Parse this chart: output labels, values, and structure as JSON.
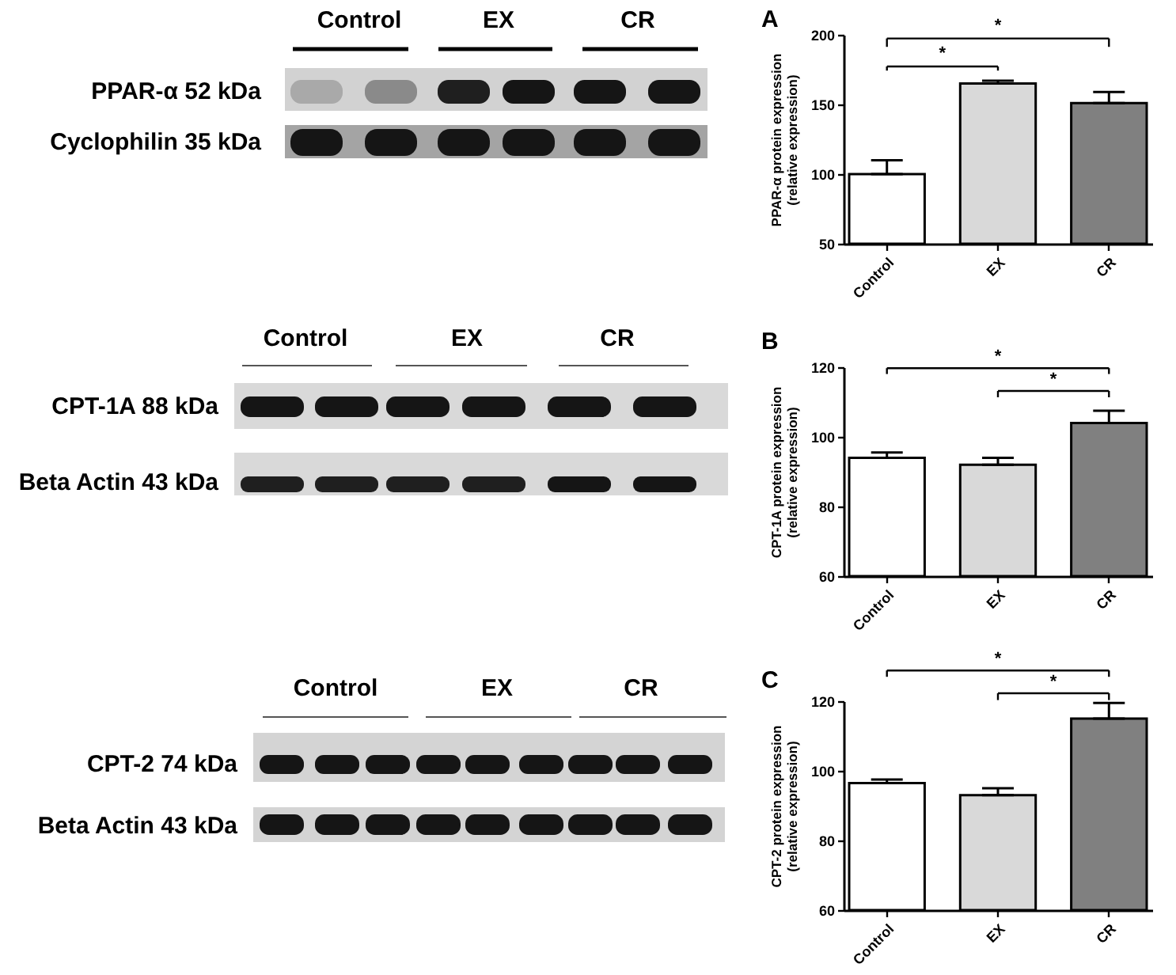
{
  "chart_data": [
    {
      "type": "other",
      "categories": [
        "Control",
        "EX",
        "CR"
      ],
      "annotations": [
        "PPAR-α 52 kDa",
        "Cyclophilin 35 kDa"
      ]
    },
    {
      "type": "bar",
      "title": "A",
      "categories": [
        "Control",
        "EX",
        "CR"
      ],
      "values": [
        100,
        165,
        151
      ],
      "colors": [
        "#ffffff",
        "#d9d9d9",
        "#808080"
      ],
      "errors": [
        [
          100,
          110
        ],
        [
          165,
          167
        ],
        [
          151,
          159
        ]
      ],
      "ylabel": "PPAR-α protein expression\n(relative expression)",
      "ylim": [
        50,
        200
      ],
      "yticks": [
        50,
        100,
        150,
        200
      ],
      "annotations": [
        "*",
        "*"
      ]
    },
    {
      "type": "other",
      "categories": [
        "Control",
        "EX",
        "CR"
      ],
      "annotations": [
        "CPT-1A 88 kDa",
        "Beta Actin 43 kDa"
      ]
    },
    {
      "type": "bar",
      "title": "B",
      "categories": [
        "Control",
        "EX",
        "CR"
      ],
      "values": [
        94,
        92,
        104
      ],
      "colors": [
        "#ffffff",
        "#d9d9d9",
        "#808080"
      ],
      "errors": [
        [
          94,
          95.5
        ],
        [
          92,
          94
        ],
        [
          104,
          107.5
        ]
      ],
      "ylabel": "CPT-1A protein expression\n(relative expression)",
      "ylim": [
        60,
        120
      ],
      "yticks": [
        60,
        80,
        100,
        120
      ],
      "annotations": [
        "*",
        "*"
      ]
    },
    {
      "type": "other",
      "categories": [
        "Control",
        "EX",
        "CR"
      ],
      "annotations": [
        "CPT-2 74 kDa",
        "Beta Actin 43 kDa"
      ]
    },
    {
      "type": "bar",
      "title": "C",
      "categories": [
        "Control",
        "EX",
        "CR"
      ],
      "values": [
        96.5,
        93,
        115
      ],
      "colors": [
        "#ffffff",
        "#d9d9d9",
        "#808080"
      ],
      "errors": [
        [
          96.5,
          97.5
        ],
        [
          93,
          95
        ],
        [
          115,
          119.5
        ]
      ],
      "ylabel": "CPT-2 protein expression\n(relative expression)",
      "ylim": [
        60,
        120
      ],
      "yticks": [
        60,
        80,
        100,
        120
      ],
      "annotations": [
        "*",
        "*"
      ]
    }
  ]
}
